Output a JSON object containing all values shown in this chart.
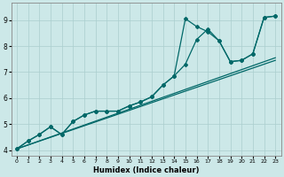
{
  "xlabel": "Humidex (Indice chaleur)",
  "bg_color": "#cce8e8",
  "grid_color": "#aacece",
  "line_color": "#006868",
  "xlim": [
    -0.5,
    23.5
  ],
  "ylim": [
    3.8,
    9.65
  ],
  "xticks": [
    0,
    1,
    2,
    3,
    4,
    5,
    6,
    7,
    8,
    9,
    10,
    11,
    12,
    13,
    14,
    15,
    16,
    17,
    18,
    19,
    20,
    21,
    22,
    23
  ],
  "yticks": [
    4,
    5,
    6,
    7,
    8,
    9
  ],
  "series_jagged1": {
    "x": [
      0,
      1,
      2,
      3,
      4,
      5,
      6,
      7,
      8,
      9,
      10,
      11,
      12,
      13,
      14,
      15,
      16,
      17,
      18,
      19,
      20,
      21,
      22,
      23
    ],
    "y": [
      4.05,
      4.35,
      4.6,
      4.9,
      4.6,
      5.1,
      5.35,
      5.5,
      5.5,
      5.5,
      5.7,
      5.85,
      6.05,
      6.5,
      6.85,
      9.05,
      8.75,
      8.55,
      8.2,
      7.4,
      7.45,
      7.7,
      9.1,
      9.15
    ]
  },
  "series_jagged2": {
    "x": [
      0,
      1,
      2,
      3,
      4,
      5,
      6,
      7,
      8,
      9,
      10,
      11,
      12,
      13,
      14,
      15,
      16,
      17,
      18,
      19,
      20,
      21,
      22,
      23
    ],
    "y": [
      4.05,
      4.35,
      4.6,
      4.9,
      4.6,
      5.1,
      5.35,
      5.5,
      5.5,
      5.5,
      5.7,
      5.85,
      6.05,
      6.5,
      6.85,
      7.3,
      8.25,
      8.65,
      8.2,
      7.4,
      7.45,
      7.7,
      9.1,
      9.15
    ]
  },
  "line1": {
    "x": [
      0,
      23
    ],
    "y": [
      4.05,
      7.45
    ]
  },
  "line2": {
    "x": [
      0,
      23
    ],
    "y": [
      4.05,
      7.55
    ]
  }
}
